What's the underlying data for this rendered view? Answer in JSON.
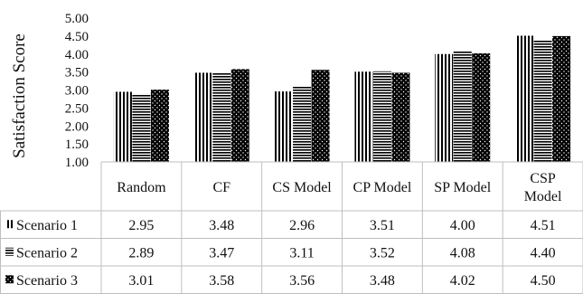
{
  "chart_data": {
    "type": "bar",
    "title": "",
    "xlabel": "",
    "ylabel": "Satisfaction Score",
    "ylim": [
      1.0,
      5.0
    ],
    "yticks": [
      "1.00",
      "1.50",
      "2.00",
      "2.50",
      "3.00",
      "3.50",
      "4.00",
      "4.50",
      "5.00"
    ],
    "categories": [
      "Random",
      "CF",
      "CS Model",
      "CP Model",
      "SP Model",
      "CSP Model"
    ],
    "category_lines": [
      [
        "Random"
      ],
      [
        "CF"
      ],
      [
        "CS Model"
      ],
      [
        "CP Model"
      ],
      [
        "SP Model"
      ],
      [
        "CSP",
        "Model"
      ]
    ],
    "series": [
      {
        "name": "Scenario 1",
        "pattern": "vertical-stripes",
        "values": [
          2.95,
          3.48,
          2.96,
          3.51,
          4.0,
          4.51
        ],
        "labels": [
          "2.95",
          "3.48",
          "2.96",
          "3.51",
          "4.00",
          "4.51"
        ]
      },
      {
        "name": "Scenario 2",
        "pattern": "horizontal-stripes",
        "values": [
          2.89,
          3.47,
          3.11,
          3.52,
          4.08,
          4.4
        ],
        "labels": [
          "2.89",
          "3.47",
          "3.11",
          "3.52",
          "4.08",
          "4.40"
        ]
      },
      {
        "name": "Scenario 3",
        "pattern": "dots-on-black",
        "values": [
          3.01,
          3.58,
          3.56,
          3.48,
          4.02,
          4.5
        ],
        "labels": [
          "3.01",
          "3.58",
          "3.56",
          "3.48",
          "4.02",
          "4.50"
        ]
      }
    ],
    "legend_position": "data-table-left",
    "grid": false,
    "colors": {
      "bar": "#000000",
      "table_border": "#bfbfbf",
      "text": "#111111"
    }
  }
}
